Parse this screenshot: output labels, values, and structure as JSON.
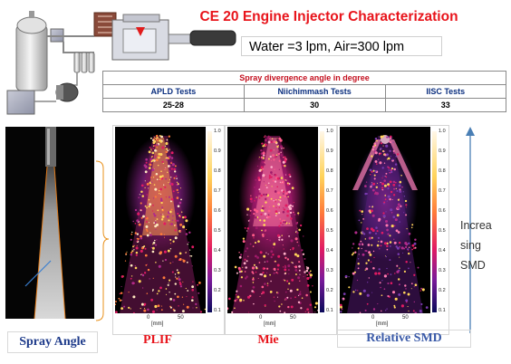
{
  "title": "CE 20 Engine Injector Characterization",
  "conditions": "Water =3 lpm,  Air=300 lpm",
  "table": {
    "caption": "Spray divergence angle in degree",
    "headers": [
      "APLD Tests",
      "Niichimmash Tests",
      "IISC Tests"
    ],
    "values": [
      "25-28",
      "30",
      "33"
    ]
  },
  "colorbar_ticks": [
    "1.0",
    "0.9",
    "0.8",
    "0.7",
    "0.6",
    "0.5",
    "0.4",
    "0.3",
    "0.2",
    "0.1"
  ],
  "axis": {
    "ticks": [
      "0",
      "50"
    ],
    "label": "[mm]"
  },
  "captions": {
    "spray_angle": "Spray Angle",
    "plif": "PLIF",
    "mie": "Mie",
    "relative_smd": "Relative SMD"
  },
  "side_note": [
    "Increa",
    "sing",
    "SMD"
  ],
  "colors": {
    "title": "#e8141b",
    "table_caption": "#c4101f",
    "table_header": "#0b2f7f",
    "spray_angle": "#1d3a8a",
    "plif": "#e8141b",
    "mie": "#e8141b",
    "relative_smd": "#3a5aa8",
    "arrow": "#4a7fb5"
  }
}
